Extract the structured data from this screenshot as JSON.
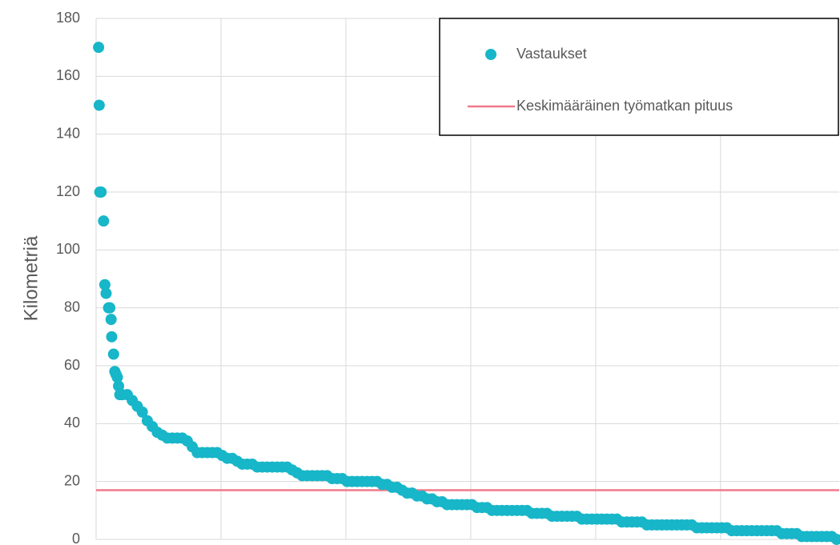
{
  "chart_data": {
    "type": "scatter",
    "y_label": "Kilometriä",
    "xlim": [
      0,
      595
    ],
    "xticks": [
      0,
      100,
      200,
      300,
      400,
      500
    ],
    "ylim": [
      0,
      180
    ],
    "yticks": [
      0,
      20,
      40,
      60,
      80,
      100,
      120,
      140,
      160,
      180
    ],
    "grid": true,
    "legend": "top-right",
    "series": [
      {
        "name": "Vastaukset",
        "color": "#17b6c8",
        "x": [
          2,
          2.5,
          3,
          4,
          6,
          7,
          8,
          10,
          11,
          12,
          12.5,
          14,
          15,
          16,
          17,
          18,
          19,
          21,
          25,
          29,
          33,
          37,
          41,
          45,
          49,
          53,
          57,
          61,
          65,
          69,
          73,
          77,
          81,
          85,
          89,
          93,
          97,
          101,
          105,
          109,
          113,
          117,
          121,
          125,
          129,
          133,
          137,
          141,
          145,
          149,
          153,
          157,
          161,
          165,
          169,
          173,
          177,
          181,
          185,
          189,
          193,
          197,
          201,
          205,
          209,
          213,
          217,
          221,
          225,
          229,
          233,
          237,
          241,
          245,
          249,
          253,
          257,
          261,
          265,
          269,
          273,
          277,
          281,
          285,
          289,
          293,
          297,
          301,
          305,
          309,
          313,
          317,
          321,
          325,
          329,
          333,
          337,
          341,
          345,
          349,
          353,
          357,
          361,
          365,
          369,
          373,
          377,
          381,
          385,
          389,
          393,
          397,
          401,
          405,
          409,
          413,
          417,
          421,
          425,
          429,
          433,
          437,
          441,
          445,
          449,
          453,
          457,
          461,
          465,
          469,
          473,
          477,
          481,
          485,
          489,
          493,
          497,
          501,
          505,
          509,
          513,
          517,
          521,
          525,
          529,
          533,
          537,
          541,
          545,
          549,
          553,
          557,
          561,
          565,
          569,
          573,
          577,
          581,
          585,
          589,
          593
        ],
        "values": [
          170,
          150,
          120,
          120,
          110,
          88,
          85,
          80,
          80,
          76,
          70,
          64,
          58,
          57,
          56,
          53,
          50,
          50,
          50,
          48,
          46,
          44,
          41,
          39,
          37,
          36,
          35,
          35,
          35,
          35,
          34,
          32,
          30,
          30,
          30,
          30,
          30,
          29,
          28,
          28,
          27,
          26,
          26,
          26,
          25,
          25,
          25,
          25,
          25,
          25,
          25,
          24,
          23,
          22,
          22,
          22,
          22,
          22,
          22,
          21,
          21,
          21,
          20,
          20,
          20,
          20,
          20,
          20,
          20,
          19,
          19,
          18,
          18,
          17,
          16,
          16,
          15,
          15,
          14,
          14,
          13,
          13,
          12,
          12,
          12,
          12,
          12,
          12,
          11,
          11,
          11,
          10,
          10,
          10,
          10,
          10,
          10,
          10,
          10,
          9,
          9,
          9,
          9,
          8,
          8,
          8,
          8,
          8,
          8,
          7,
          7,
          7,
          7,
          7,
          7,
          7,
          7,
          6,
          6,
          6,
          6,
          6,
          5,
          5,
          5,
          5,
          5,
          5,
          5,
          5,
          5,
          5,
          4,
          4,
          4,
          4,
          4,
          4,
          4,
          3,
          3,
          3,
          3,
          3,
          3,
          3,
          3,
          3,
          3,
          2,
          2,
          2,
          2,
          1,
          1,
          1,
          1,
          1,
          1,
          1,
          0
        ]
      },
      {
        "name": "Keskimääräinen työmatkan pituus",
        "color": "#f07a8c",
        "type": "hline",
        "values": [
          17
        ]
      }
    ]
  }
}
